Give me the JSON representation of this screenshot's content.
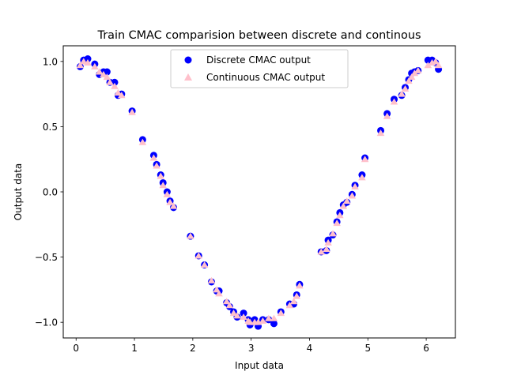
{
  "chart_data": {
    "type": "scatter",
    "title": "Train CMAC comparision between discrete and continous",
    "xlabel": "Input data",
    "ylabel": "Output data",
    "xlim": [
      -0.22,
      6.5
    ],
    "ylim": [
      -1.12,
      1.12
    ],
    "xticks": [
      0,
      1,
      2,
      3,
      4,
      5,
      6
    ],
    "xtick_labels": [
      "0",
      "1",
      "2",
      "3",
      "4",
      "5",
      "6"
    ],
    "yticks": [
      -1.0,
      -0.5,
      0.0,
      0.5,
      1.0
    ],
    "ytick_labels": [
      "−1.0",
      "−0.5",
      "0.0",
      "0.5",
      "1.0"
    ],
    "grid": false,
    "legend_position": "upper center",
    "series": [
      {
        "name": "Discrete CMAC output",
        "marker": "circle",
        "color": "#0000ff",
        "x": [
          0.07,
          0.13,
          0.2,
          0.32,
          0.4,
          0.47,
          0.53,
          0.58,
          0.66,
          0.72,
          0.78,
          0.96,
          1.14,
          1.33,
          1.38,
          1.45,
          1.49,
          1.56,
          1.61,
          1.67,
          1.96,
          2.1,
          2.2,
          2.32,
          2.41,
          2.45,
          2.58,
          2.63,
          2.7,
          2.76,
          2.87,
          2.95,
          2.98,
          3.06,
          3.12,
          3.2,
          3.3,
          3.39,
          3.51,
          3.66,
          3.73,
          3.78,
          3.83,
          4.2,
          4.29,
          4.32,
          4.4,
          4.47,
          4.52,
          4.58,
          4.64,
          4.73,
          4.78,
          4.9,
          4.95,
          5.22,
          5.33,
          5.45,
          5.58,
          5.64,
          5.7,
          5.75,
          5.8,
          5.86,
          6.03,
          6.1,
          6.16,
          6.21
        ],
        "y": [
          0.96,
          1.01,
          1.02,
          0.98,
          0.9,
          0.92,
          0.92,
          0.84,
          0.84,
          0.74,
          0.75,
          0.62,
          0.4,
          0.28,
          0.21,
          0.13,
          0.07,
          0.0,
          -0.07,
          -0.12,
          -0.34,
          -0.49,
          -0.56,
          -0.69,
          -0.76,
          -0.76,
          -0.85,
          -0.88,
          -0.92,
          -0.96,
          -0.93,
          -0.98,
          -1.02,
          -0.98,
          -1.03,
          -0.98,
          -0.98,
          -1.01,
          -0.92,
          -0.86,
          -0.86,
          -0.79,
          -0.71,
          -0.46,
          -0.45,
          -0.37,
          -0.33,
          -0.23,
          -0.16,
          -0.1,
          -0.08,
          -0.02,
          0.05,
          0.13,
          0.26,
          0.47,
          0.6,
          0.71,
          0.74,
          0.8,
          0.86,
          0.91,
          0.92,
          0.93,
          1.01,
          1.01,
          0.99,
          0.94
        ]
      },
      {
        "name": "Continuous CMAC output",
        "marker": "triangle",
        "color": "#ffc0cb",
        "x": [
          0.07,
          0.13,
          0.2,
          0.32,
          0.4,
          0.47,
          0.53,
          0.58,
          0.66,
          0.72,
          0.78,
          0.96,
          1.14,
          1.33,
          1.38,
          1.45,
          1.49,
          1.56,
          1.61,
          1.67,
          1.96,
          2.1,
          2.2,
          2.32,
          2.41,
          2.45,
          2.58,
          2.63,
          2.7,
          2.76,
          2.87,
          2.95,
          2.98,
          3.06,
          3.12,
          3.2,
          3.3,
          3.39,
          3.51,
          3.66,
          3.73,
          3.78,
          3.83,
          4.2,
          4.29,
          4.32,
          4.4,
          4.47,
          4.52,
          4.58,
          4.64,
          4.73,
          4.78,
          4.9,
          4.95,
          5.22,
          5.33,
          5.45,
          5.58,
          5.64,
          5.7,
          5.75,
          5.8,
          5.86,
          6.03,
          6.1,
          6.16,
          6.21
        ],
        "y": [
          0.97,
          1.0,
          0.99,
          0.96,
          0.92,
          0.9,
          0.88,
          0.84,
          0.81,
          0.76,
          0.74,
          0.61,
          0.38,
          0.26,
          0.2,
          0.12,
          0.05,
          -0.02,
          -0.08,
          -0.11,
          -0.34,
          -0.49,
          -0.56,
          -0.68,
          -0.75,
          -0.78,
          -0.84,
          -0.87,
          -0.93,
          -0.95,
          -0.96,
          -0.99,
          -1.0,
          -1.0,
          -1.0,
          -0.99,
          -0.97,
          -0.97,
          -0.93,
          -0.87,
          -0.84,
          -0.8,
          -0.72,
          -0.46,
          -0.44,
          -0.39,
          -0.32,
          -0.24,
          -0.18,
          -0.11,
          -0.07,
          -0.03,
          0.04,
          0.11,
          0.25,
          0.45,
          0.58,
          0.69,
          0.75,
          0.79,
          0.85,
          0.88,
          0.91,
          0.93,
          0.97,
          0.99,
          1.0,
          0.97
        ]
      }
    ]
  }
}
